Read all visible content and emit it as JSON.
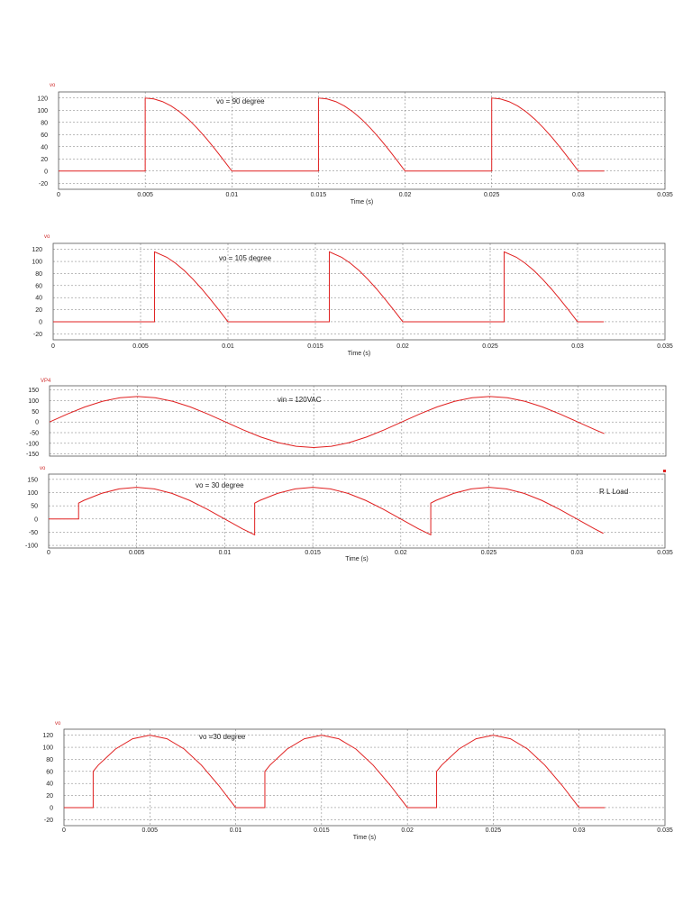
{
  "chart_data": [
    {
      "id": "c1",
      "type": "line",
      "ylabel": "vo",
      "xlabel": "Time (s)",
      "annotation": "vo = 90 degree",
      "xlim": [
        0,
        0.035
      ],
      "ylim": [
        -30,
        130
      ],
      "xticks": [
        "0",
        "0.005",
        "0.01",
        "0.015",
        "0.02",
        "0.025",
        "0.03",
        "0.035"
      ],
      "xtick_values": [
        0,
        0.005,
        0.01,
        0.015,
        0.02,
        0.025,
        0.03,
        0.035
      ],
      "yticks": [
        "120",
        "100",
        "80",
        "60",
        "40",
        "20",
        "0",
        "-20"
      ],
      "ytick_values": [
        120,
        100,
        80,
        60,
        40,
        20,
        0,
        -20
      ],
      "series": [
        {
          "color": "#e02020",
          "points": [
            [
              0,
              0
            ],
            [
              0.005,
              0
            ],
            [
              0.005,
              120
            ],
            [
              0.0055,
              118.5
            ],
            [
              0.006,
              114.1
            ],
            [
              0.0065,
              107
            ],
            [
              0.007,
              97.1
            ],
            [
              0.0075,
              84.9
            ],
            [
              0.008,
              70.5
            ],
            [
              0.0085,
              54.5
            ],
            [
              0.009,
              37.1
            ],
            [
              0.0095,
              18.8
            ],
            [
              0.01,
              0
            ],
            [
              0.015,
              0
            ],
            [
              0.015,
              120
            ],
            [
              0.0155,
              118.5
            ],
            [
              0.016,
              114.1
            ],
            [
              0.0165,
              107
            ],
            [
              0.017,
              97.1
            ],
            [
              0.0175,
              84.9
            ],
            [
              0.018,
              70.5
            ],
            [
              0.0185,
              54.5
            ],
            [
              0.019,
              37.1
            ],
            [
              0.0195,
              18.8
            ],
            [
              0.02,
              0
            ],
            [
              0.025,
              0
            ],
            [
              0.025,
              120
            ],
            [
              0.0255,
              118.5
            ],
            [
              0.026,
              114.1
            ],
            [
              0.0265,
              107
            ],
            [
              0.027,
              97.1
            ],
            [
              0.0275,
              84.9
            ],
            [
              0.028,
              70.5
            ],
            [
              0.0285,
              54.5
            ],
            [
              0.029,
              37.1
            ],
            [
              0.0295,
              18.8
            ],
            [
              0.03,
              0
            ],
            [
              0.0315,
              0
            ]
          ]
        }
      ]
    },
    {
      "id": "c2",
      "type": "line",
      "ylabel": "vo",
      "xlabel": "Time (s)",
      "annotation": "vo = 105 degree",
      "xlim": [
        0,
        0.035
      ],
      "ylim": [
        -30,
        130
      ],
      "xticks": [
        "0",
        "0.005",
        "0.01",
        "0.015",
        "0.02",
        "0.025",
        "0.03",
        "0.035"
      ],
      "xtick_values": [
        0,
        0.005,
        0.01,
        0.015,
        0.02,
        0.025,
        0.03,
        0.035
      ],
      "yticks": [
        "120",
        "100",
        "80",
        "60",
        "40",
        "20",
        "0",
        "-20"
      ],
      "ytick_values": [
        120,
        100,
        80,
        60,
        40,
        20,
        0,
        -20
      ],
      "series": [
        {
          "color": "#e02020",
          "points": [
            [
              0,
              0
            ],
            [
              0.0058,
              0
            ],
            [
              0.0058,
              116
            ],
            [
              0.0065,
              107
            ],
            [
              0.007,
              97.1
            ],
            [
              0.0075,
              84.9
            ],
            [
              0.008,
              70.5
            ],
            [
              0.0085,
              54.5
            ],
            [
              0.009,
              37.1
            ],
            [
              0.0095,
              18.8
            ],
            [
              0.01,
              0
            ],
            [
              0.0158,
              0
            ],
            [
              0.0158,
              116
            ],
            [
              0.0165,
              107
            ],
            [
              0.017,
              97.1
            ],
            [
              0.0175,
              84.9
            ],
            [
              0.018,
              70.5
            ],
            [
              0.0185,
              54.5
            ],
            [
              0.019,
              37.1
            ],
            [
              0.0195,
              18.8
            ],
            [
              0.02,
              0
            ],
            [
              0.0258,
              0
            ],
            [
              0.0258,
              116
            ],
            [
              0.0265,
              107
            ],
            [
              0.027,
              97.1
            ],
            [
              0.0275,
              84.9
            ],
            [
              0.028,
              70.5
            ],
            [
              0.0285,
              54.5
            ],
            [
              0.029,
              37.1
            ],
            [
              0.0295,
              18.8
            ],
            [
              0.03,
              0
            ],
            [
              0.0315,
              0
            ]
          ]
        }
      ]
    },
    {
      "id": "c3",
      "type": "line",
      "ylabel": "VP4",
      "xlabel": "",
      "annotation": "vin = 120VAC",
      "xlim": [
        0,
        0.035
      ],
      "ylim": [
        -160,
        170
      ],
      "xticks": [],
      "xtick_values": [
        0,
        0.005,
        0.01,
        0.015,
        0.02,
        0.025,
        0.03,
        0.035
      ],
      "yticks": [
        "150",
        "100",
        "50",
        "0",
        "-50",
        "-100",
        "-150"
      ],
      "ytick_values": [
        150,
        100,
        50,
        0,
        -50,
        -100,
        -150
      ],
      "series": [
        {
          "color": "#e02020",
          "points": [
            [
              0,
              0
            ],
            [
              0.001,
              37.1
            ],
            [
              0.002,
              70.5
            ],
            [
              0.003,
              97.1
            ],
            [
              0.004,
              114.1
            ],
            [
              0.005,
              120
            ],
            [
              0.006,
              114.1
            ],
            [
              0.007,
              97.1
            ],
            [
              0.008,
              70.5
            ],
            [
              0.009,
              37.1
            ],
            [
              0.01,
              0
            ],
            [
              0.011,
              -37.1
            ],
            [
              0.012,
              -70.5
            ],
            [
              0.013,
              -97.1
            ],
            [
              0.014,
              -114.1
            ],
            [
              0.015,
              -120
            ],
            [
              0.016,
              -114.1
            ],
            [
              0.017,
              -97.1
            ],
            [
              0.018,
              -70.5
            ],
            [
              0.019,
              -37.1
            ],
            [
              0.02,
              0
            ],
            [
              0.021,
              37.1
            ],
            [
              0.022,
              70.5
            ],
            [
              0.023,
              97.1
            ],
            [
              0.024,
              114.1
            ],
            [
              0.025,
              120
            ],
            [
              0.026,
              114.1
            ],
            [
              0.027,
              97.1
            ],
            [
              0.028,
              70.5
            ],
            [
              0.029,
              37.1
            ],
            [
              0.03,
              0
            ],
            [
              0.031,
              -37.1
            ],
            [
              0.0315,
              -54.5
            ]
          ]
        }
      ]
    },
    {
      "id": "c4",
      "type": "line",
      "ylabel": "vo",
      "xlabel": "Time (s)",
      "annotation": "vo = 30 degree",
      "annotation2": "R L Load",
      "xlim": [
        0,
        0.035
      ],
      "ylim": [
        -110,
        170
      ],
      "xticks": [
        "0",
        "0.005",
        "0.01",
        "0.015",
        "0.02",
        "0.025",
        "0.03",
        "0.035"
      ],
      "xtick_values": [
        0,
        0.005,
        0.01,
        0.015,
        0.02,
        0.025,
        0.03,
        0.035
      ],
      "yticks": [
        "150",
        "100",
        "50",
        "0",
        "-50",
        "-100"
      ],
      "ytick_values": [
        150,
        100,
        50,
        0,
        -50,
        -100
      ],
      "series": [
        {
          "color": "#e02020",
          "points": [
            [
              0,
              0
            ],
            [
              0.0017,
              0
            ],
            [
              0.0017,
              60
            ],
            [
              0.002,
              70.5
            ],
            [
              0.003,
              97.1
            ],
            [
              0.004,
              114.1
            ],
            [
              0.005,
              120
            ],
            [
              0.006,
              114.1
            ],
            [
              0.007,
              97.1
            ],
            [
              0.008,
              70.5
            ],
            [
              0.009,
              37.1
            ],
            [
              0.01,
              0
            ],
            [
              0.011,
              -37.1
            ],
            [
              0.0117,
              -60
            ],
            [
              0.0117,
              60
            ],
            [
              0.012,
              70.5
            ],
            [
              0.013,
              97.1
            ],
            [
              0.014,
              114.1
            ],
            [
              0.015,
              120
            ],
            [
              0.016,
              114.1
            ],
            [
              0.017,
              97.1
            ],
            [
              0.018,
              70.5
            ],
            [
              0.019,
              37.1
            ],
            [
              0.02,
              0
            ],
            [
              0.021,
              -37.1
            ],
            [
              0.0217,
              -60
            ],
            [
              0.0217,
              60
            ],
            [
              0.022,
              70.5
            ],
            [
              0.023,
              97.1
            ],
            [
              0.024,
              114.1
            ],
            [
              0.025,
              120
            ],
            [
              0.026,
              114.1
            ],
            [
              0.027,
              97.1
            ],
            [
              0.028,
              70.5
            ],
            [
              0.029,
              37.1
            ],
            [
              0.03,
              0
            ],
            [
              0.031,
              -37.1
            ],
            [
              0.0315,
              -54.5
            ]
          ]
        }
      ]
    },
    {
      "id": "c5",
      "type": "line",
      "ylabel": "vo",
      "xlabel": "Time (s)",
      "annotation": "vo =30 degree",
      "xlim": [
        0,
        0.035
      ],
      "ylim": [
        -30,
        130
      ],
      "xticks": [
        "0",
        "0.005",
        "0.01",
        "0.015",
        "0.02",
        "0.025",
        "0.03",
        "0.035"
      ],
      "xtick_values": [
        0,
        0.005,
        0.01,
        0.015,
        0.02,
        0.025,
        0.03,
        0.035
      ],
      "yticks": [
        "120",
        "100",
        "80",
        "60",
        "40",
        "20",
        "0",
        "-20"
      ],
      "ytick_values": [
        120,
        100,
        80,
        60,
        40,
        20,
        0,
        -20
      ],
      "series": [
        {
          "color": "#e02020",
          "points": [
            [
              0,
              0
            ],
            [
              0.0017,
              0
            ],
            [
              0.0017,
              60
            ],
            [
              0.002,
              70.5
            ],
            [
              0.003,
              97.1
            ],
            [
              0.004,
              114.1
            ],
            [
              0.005,
              120
            ],
            [
              0.006,
              114.1
            ],
            [
              0.007,
              97.1
            ],
            [
              0.008,
              70.5
            ],
            [
              0.009,
              37.1
            ],
            [
              0.01,
              0
            ],
            [
              0.0117,
              0
            ],
            [
              0.0117,
              60
            ],
            [
              0.012,
              70.5
            ],
            [
              0.013,
              97.1
            ],
            [
              0.014,
              114.1
            ],
            [
              0.015,
              120
            ],
            [
              0.016,
              114.1
            ],
            [
              0.017,
              97.1
            ],
            [
              0.018,
              70.5
            ],
            [
              0.019,
              37.1
            ],
            [
              0.02,
              0
            ],
            [
              0.0217,
              0
            ],
            [
              0.0217,
              60
            ],
            [
              0.022,
              70.5
            ],
            [
              0.023,
              97.1
            ],
            [
              0.024,
              114.1
            ],
            [
              0.025,
              120
            ],
            [
              0.026,
              114.1
            ],
            [
              0.027,
              97.1
            ],
            [
              0.028,
              70.5
            ],
            [
              0.029,
              37.1
            ],
            [
              0.03,
              0
            ],
            [
              0.0315,
              0
            ]
          ]
        }
      ]
    }
  ]
}
